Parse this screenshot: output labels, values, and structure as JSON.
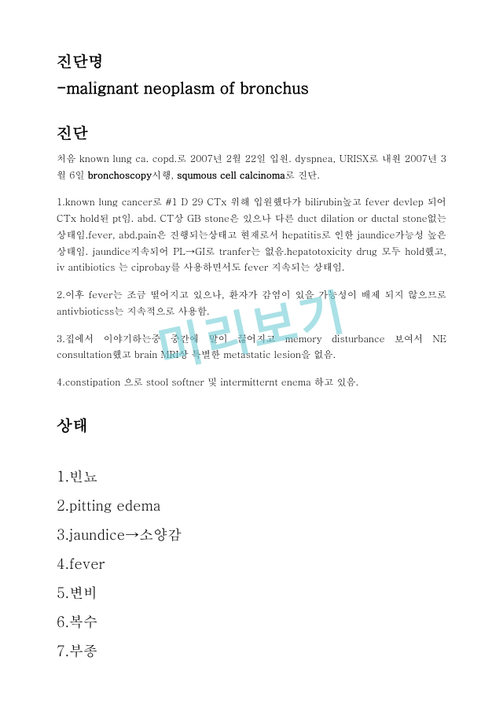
{
  "watermark": {
    "text": "미리보기",
    "color": "rgba(100,200,210,0.55)"
  },
  "title": "진단명",
  "subtitle": "-malignant neoplasm of bronchus",
  "section_diag": "진단",
  "intro_part1": "처음 known lung ca. copd.로 2007년 2월 22일 입원. dyspnea, URISX로 내원 2007년 3월 6일 ",
  "intro_bold1": "bronchoscopy",
  "intro_part2": "시행, ",
  "intro_bold2": "squmous cell calcinoma",
  "intro_part3": "로 진단.",
  "para1": "1.known lung cancer로 #1 D 29 CTx 위해 입원했다가 bilirubin높고 fever devlep 되어 CTx hold된 pt임. abd. CT상 GB stone은 있으나 다른 duct dilation or ductal stone없는 상태임.fever, abd.pain은 진행되는상태고 현재로서 hepatitis로 인한 jaundice가능성 높은 상태임. jaundice지속되어 PL→GI로 tranfer는 없음.hepatotoxicity drug 모두 hold했고, iv antibiotics 는 ciprobay를 사용하면서도 fever 지속되는 상태임.",
  "para2": "2.이후 fever는 조금 떨어지고 있으나, 환자가 감염이 있을 가능성이 배제 되지 않으므로 antivbioticss는 지속적으로 사용함.",
  "para3": "3.집에서 이야기하는중 중간에 말이 끊어지고 memory disturbance 보여서 NE consultation했고 brain MRI상 특별한 metastatic lesion을 없음.",
  "para4": "4.constipation 으로 stool softner 및 intermitternt enema 하고 있음.",
  "section_state": "상태",
  "states": [
    "1.빈뇨",
    "2.pitting edema",
    "3.jaundice→소양감",
    "4.fever",
    "5.변비",
    "6.복수",
    "7.부종"
  ]
}
